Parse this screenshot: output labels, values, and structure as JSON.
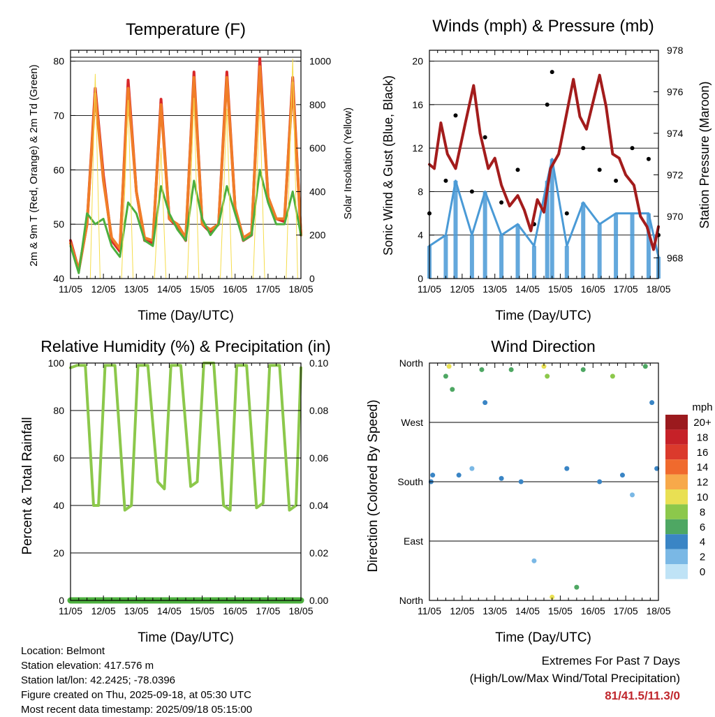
{
  "charts": {
    "temperature": {
      "title": "Temperature (F)",
      "ylabel_left": "2m & 9m T (Red, Orange) & 2m Td (Green)",
      "ylabel_right": "Solar Insolation (Yellow)",
      "xlabel": "Time (Day/UTC)"
    },
    "winds": {
      "title": "Winds (mph) & Pressure (mb)",
      "ylabel_left": "Sonic Wind & Gust (Blue, Black)",
      "ylabel_right": "Station Pressure (Maroon)",
      "xlabel": "Time (Day/UTC)"
    },
    "humidity": {
      "title": "Relative Humidity (%) & Precipitation (in)",
      "ylabel_left": "Percent & Total Rainfall",
      "xlabel": "Time (Day/UTC)"
    },
    "direction": {
      "title": "Wind Direction",
      "ylabel_left": "Direction (Colored By Speed)",
      "xlabel": "Time (Day/UTC)",
      "legend_title": "mph"
    }
  },
  "chart_data": [
    {
      "type": "line",
      "title": "Temperature (F)",
      "x_ticks": [
        "11/05",
        "12/05",
        "13/05",
        "14/05",
        "15/05",
        "16/05",
        "17/05",
        "18/05"
      ],
      "x_range_days": [
        11,
        18
      ],
      "ylim": [
        40,
        82
      ],
      "y_ticks": [
        40,
        50,
        60,
        70,
        80
      ],
      "y2lim": [
        0,
        1050
      ],
      "y2_ticks": [
        0,
        200,
        400,
        600,
        800,
        1000
      ],
      "grid": "horizontal",
      "series": [
        {
          "name": "2m T",
          "color": "#d8282a",
          "x": [
            11.0,
            11.25,
            11.5,
            11.75,
            12.0,
            12.25,
            12.5,
            12.75,
            13.0,
            13.25,
            13.5,
            13.75,
            14.0,
            14.25,
            14.5,
            14.75,
            15.0,
            15.25,
            15.5,
            15.75,
            16.0,
            16.25,
            16.5,
            16.75,
            17.0,
            17.25,
            17.5,
            17.75,
            18.0
          ],
          "y": [
            47,
            41.5,
            50,
            75,
            59,
            47,
            45,
            76.5,
            56,
            47,
            46.5,
            73,
            51,
            49.5,
            47,
            78,
            50,
            48.5,
            50,
            78,
            53,
            47,
            48,
            80.5,
            55,
            51,
            50.5,
            77,
            48
          ]
        },
        {
          "name": "9m T",
          "color": "#f07d28",
          "x": [
            11.0,
            11.25,
            11.5,
            11.75,
            12.0,
            12.25,
            12.5,
            12.75,
            13.0,
            13.25,
            13.5,
            13.75,
            14.0,
            14.25,
            14.5,
            14.75,
            15.0,
            15.25,
            15.5,
            15.75,
            16.0,
            16.25,
            16.5,
            16.75,
            17.0,
            17.25,
            17.5,
            17.75,
            18.0
          ],
          "y": [
            46.5,
            41.5,
            50,
            74,
            58,
            47.5,
            45.5,
            75,
            56,
            47.5,
            47,
            72,
            51,
            50,
            47.5,
            77,
            50,
            49,
            50,
            77,
            53,
            47.5,
            48.5,
            79,
            55,
            51,
            51,
            76,
            48
          ]
        },
        {
          "name": "2m Td",
          "color": "#4caf3e",
          "x": [
            11.0,
            11.25,
            11.5,
            11.75,
            12.0,
            12.25,
            12.5,
            12.75,
            13.0,
            13.25,
            13.5,
            13.75,
            14.0,
            14.25,
            14.5,
            14.75,
            15.0,
            15.25,
            15.5,
            15.75,
            16.0,
            16.25,
            16.5,
            16.75,
            17.0,
            17.25,
            17.5,
            17.75,
            18.0
          ],
          "y": [
            46,
            41,
            52,
            50,
            51,
            46,
            44,
            54,
            52,
            47,
            46,
            57,
            52,
            49,
            47,
            58,
            51,
            48,
            50,
            57,
            52,
            47,
            48,
            60,
            54,
            50,
            50,
            56,
            48
          ]
        },
        {
          "name": "Solar Insolation",
          "color": "#f5dc4a",
          "axis": "right",
          "x": [
            11.0,
            11.6,
            11.75,
            11.9,
            12.55,
            12.75,
            12.9,
            13.55,
            13.75,
            13.9,
            14.55,
            14.75,
            14.9,
            15.55,
            15.75,
            15.9,
            16.55,
            16.75,
            16.9,
            17.55,
            17.75,
            17.9,
            18.0
          ],
          "y": [
            0,
            0,
            940,
            0,
            0,
            820,
            0,
            0,
            600,
            0,
            0,
            830,
            0,
            0,
            780,
            0,
            0,
            820,
            0,
            0,
            1010,
            0,
            0
          ]
        }
      ]
    },
    {
      "type": "line",
      "title": "Winds (mph) & Pressure (mb)",
      "x_ticks": [
        "11/05",
        "12/05",
        "13/05",
        "14/05",
        "15/05",
        "16/05",
        "17/05",
        "18/05"
      ],
      "x_range_days": [
        11,
        18
      ],
      "ylim": [
        0,
        21
      ],
      "y_ticks": [
        0,
        4,
        8,
        12,
        16,
        20
      ],
      "y2lim": [
        967,
        978
      ],
      "y2_ticks": [
        968,
        970,
        972,
        974,
        976,
        978
      ],
      "grid": "horizontal",
      "series": [
        {
          "name": "Station Pressure",
          "color": "#a31c1c",
          "axis": "right",
          "x": [
            11.0,
            11.15,
            11.35,
            11.55,
            11.8,
            12.1,
            12.35,
            12.55,
            12.8,
            13.0,
            13.2,
            13.45,
            13.7,
            13.9,
            14.1,
            14.3,
            14.5,
            14.7,
            14.95,
            15.2,
            15.4,
            15.6,
            15.8,
            16.0,
            16.2,
            16.4,
            16.6,
            16.8,
            17.0,
            17.25,
            17.45,
            17.65,
            17.85,
            18.0
          ],
          "y": [
            972.5,
            972.3,
            974.5,
            973.0,
            972.3,
            974.5,
            976.3,
            974.0,
            972.3,
            972.8,
            971.5,
            970.5,
            971.0,
            970.3,
            969.3,
            970.8,
            970.2,
            972.3,
            973.0,
            975.0,
            976.6,
            974.8,
            974.2,
            975.5,
            976.8,
            975.3,
            973.0,
            972.8,
            972.0,
            971.5,
            970.0,
            969.5,
            968.4,
            969.5
          ]
        },
        {
          "name": "Gust",
          "color": "#000000",
          "x": [
            11.0,
            11.5,
            11.8,
            12.3,
            12.7,
            13.2,
            13.7,
            14.2,
            14.6,
            14.75,
            15.2,
            15.7,
            16.2,
            16.7,
            17.2,
            17.7,
            18.0
          ],
          "y": [
            6,
            9,
            15,
            8,
            13,
            7,
            10,
            5,
            16,
            19,
            6,
            12,
            10,
            9,
            12,
            11,
            4
          ]
        },
        {
          "name": "Sonic Wind",
          "color": "#4a9ad6",
          "x": [
            11.0,
            11.5,
            11.8,
            12.3,
            12.7,
            13.2,
            13.7,
            14.2,
            14.6,
            14.75,
            15.2,
            15.7,
            16.2,
            16.7,
            17.2,
            17.7,
            18.0
          ],
          "y": [
            3,
            4,
            9,
            4,
            8,
            4,
            5,
            3,
            9,
            11,
            3,
            7,
            5,
            6,
            6,
            6,
            2
          ]
        }
      ]
    },
    {
      "type": "line",
      "title": "Relative Humidity (%) & Precipitation (in)",
      "x_ticks": [
        "11/05",
        "12/05",
        "13/05",
        "14/05",
        "15/05",
        "16/05",
        "17/05",
        "18/05"
      ],
      "x_range_days": [
        11,
        18
      ],
      "ylim": [
        0,
        100
      ],
      "y_ticks": [
        0,
        20,
        40,
        60,
        80,
        100
      ],
      "y2lim": [
        0,
        0.1
      ],
      "y2_ticks": [
        "0.00",
        "0.02",
        "0.04",
        "0.06",
        "0.08",
        "0.10"
      ],
      "grid": "horizontal",
      "series": [
        {
          "name": "Relative Humidity",
          "color": "#8cc84b",
          "x": [
            11.0,
            11.2,
            11.45,
            11.7,
            11.85,
            12.05,
            12.35,
            12.65,
            12.85,
            13.05,
            13.35,
            13.65,
            13.85,
            14.05,
            14.35,
            14.65,
            14.85,
            15.05,
            15.35,
            15.65,
            15.85,
            16.05,
            16.35,
            16.65,
            16.85,
            17.05,
            17.35,
            17.65,
            17.85,
            18.0
          ],
          "y": [
            98,
            99,
            99,
            40,
            40,
            99,
            99,
            38,
            40,
            99,
            99,
            50,
            47,
            99,
            99,
            48,
            50,
            100,
            100,
            40,
            38,
            99,
            99,
            39,
            41,
            99,
            99,
            38,
            40,
            98
          ]
        },
        {
          "name": "Total Precipitation",
          "color": "#4caf3e",
          "axis": "right",
          "x": [
            11.0,
            18.0
          ],
          "y": [
            0.0,
            0.0
          ]
        }
      ]
    },
    {
      "type": "scatter",
      "title": "Wind Direction",
      "x_ticks": [
        "11/05",
        "12/05",
        "13/05",
        "14/05",
        "15/05",
        "16/05",
        "17/05",
        "18/05"
      ],
      "x_range_days": [
        11,
        18
      ],
      "y_ticks": [
        "North",
        "East",
        "South",
        "West",
        "North"
      ],
      "y_range_deg": [
        0,
        360
      ],
      "grid": "horizontal",
      "color_scale": {
        "title": "mph",
        "labels": [
          "20+",
          "18",
          "16",
          "14",
          "12",
          "10",
          "8",
          "6",
          "4",
          "2",
          "0"
        ],
        "colors": [
          "#9b1a1e",
          "#c62128",
          "#db3a2c",
          "#f06a2d",
          "#f7a94a",
          "#e9e053",
          "#8cc84b",
          "#4ea763",
          "#3a85c5",
          "#7ab8e5",
          "#bfe3f6"
        ]
      },
      "points": [
        {
          "x": 11.05,
          "dir": 180,
          "speed": 3
        },
        {
          "x": 11.1,
          "dir": 190,
          "speed": 4
        },
        {
          "x": 11.5,
          "dir": 340,
          "speed": 5
        },
        {
          "x": 11.6,
          "dir": 355,
          "speed": 9
        },
        {
          "x": 11.7,
          "dir": 320,
          "speed": 6
        },
        {
          "x": 11.9,
          "dir": 190,
          "speed": 3
        },
        {
          "x": 12.3,
          "dir": 200,
          "speed": 2
        },
        {
          "x": 12.6,
          "dir": 350,
          "speed": 6
        },
        {
          "x": 12.7,
          "dir": 300,
          "speed": 4
        },
        {
          "x": 13.2,
          "dir": 185,
          "speed": 3
        },
        {
          "x": 13.5,
          "dir": 350,
          "speed": 5
        },
        {
          "x": 13.8,
          "dir": 180,
          "speed": 4
        },
        {
          "x": 14.2,
          "dir": 60,
          "speed": 2
        },
        {
          "x": 14.5,
          "dir": 355,
          "speed": 9
        },
        {
          "x": 14.6,
          "dir": 340,
          "speed": 7
        },
        {
          "x": 14.75,
          "dir": 5,
          "speed": 10
        },
        {
          "x": 15.2,
          "dir": 200,
          "speed": 3
        },
        {
          "x": 15.5,
          "dir": 20,
          "speed": 5
        },
        {
          "x": 15.7,
          "dir": 350,
          "speed": 6
        },
        {
          "x": 16.2,
          "dir": 180,
          "speed": 4
        },
        {
          "x": 16.6,
          "dir": 340,
          "speed": 7
        },
        {
          "x": 16.9,
          "dir": 190,
          "speed": 3
        },
        {
          "x": 17.2,
          "dir": 160,
          "speed": 2
        },
        {
          "x": 17.6,
          "dir": 355,
          "speed": 6
        },
        {
          "x": 17.8,
          "dir": 300,
          "speed": 4
        },
        {
          "x": 17.95,
          "dir": 200,
          "speed": 3
        }
      ]
    }
  ],
  "info": {
    "location": "Location: Belmont",
    "elevation": "Station elevation: 417.576 m",
    "latlon": "Station lat/lon: 42.2425; -78.0396",
    "created": "Figure created on Thu, 2025-09-18, at 05:30 UTC",
    "timestamp": "Most recent data timestamp: 2025/09/18 05:15:00"
  },
  "extremes": {
    "title": "Extremes For Past 7 Days",
    "subtitle": "(High/Low/Max Wind/Total Precipitation)",
    "value": "81/41.5/11.3/0",
    "value_color": "#c0272d"
  }
}
